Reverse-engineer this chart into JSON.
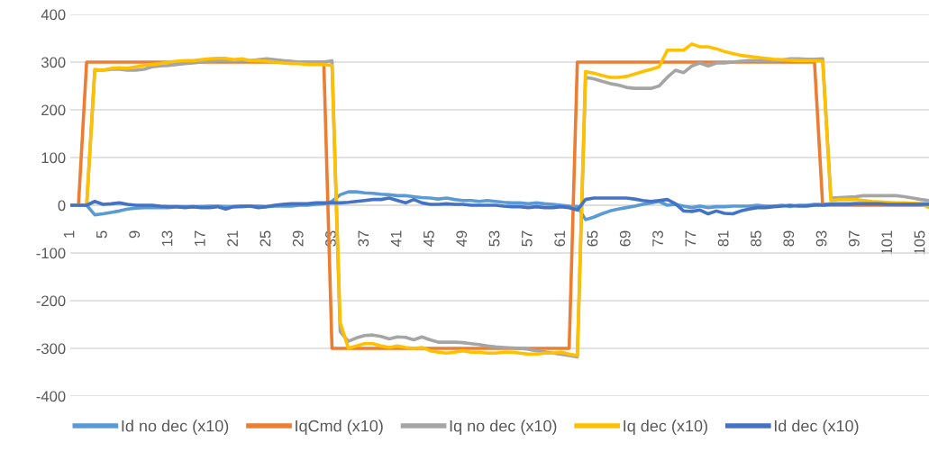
{
  "chart_data": {
    "type": "line",
    "categories": [
      "1",
      null,
      null,
      null,
      "5",
      null,
      null,
      null,
      "9",
      null,
      null,
      null,
      "13",
      null,
      null,
      null,
      "17",
      null,
      null,
      null,
      "21",
      null,
      null,
      null,
      "25",
      null,
      null,
      null,
      "29",
      null,
      null,
      null,
      "33",
      null,
      null,
      null,
      "37",
      null,
      null,
      null,
      "41",
      null,
      null,
      null,
      "45",
      null,
      null,
      null,
      "49",
      null,
      null,
      null,
      "53",
      null,
      null,
      null,
      "57",
      null,
      null,
      null,
      "61",
      null,
      null,
      null,
      "65",
      null,
      null,
      null,
      "69",
      null,
      null,
      null,
      "73",
      null,
      null,
      null,
      "77",
      null,
      null,
      null,
      "81",
      null,
      null,
      null,
      "85",
      null,
      null,
      null,
      "89",
      null,
      null,
      null,
      "93",
      null,
      null,
      null,
      "97",
      null,
      null,
      null,
      "101",
      null,
      null,
      null,
      "105",
      null
    ],
    "series": [
      {
        "name": "Id no dec (x10)",
        "color": "#5b9bd5",
        "values": [
          0,
          0,
          0,
          -20,
          -18,
          -15,
          -12,
          -8,
          -6,
          -5,
          -5,
          -5,
          -5,
          -3,
          -3,
          -3,
          -3,
          -2,
          -2,
          -3,
          -3,
          -3,
          -2,
          -2,
          -3,
          -2,
          -2,
          -2,
          0,
          0,
          2,
          3,
          8,
          22,
          28,
          28,
          26,
          25,
          23,
          22,
          20,
          20,
          18,
          16,
          15,
          13,
          15,
          12,
          10,
          10,
          8,
          10,
          8,
          6,
          5,
          5,
          3,
          5,
          3,
          2,
          0,
          -2,
          -3,
          -30,
          -25,
          -18,
          -12,
          -8,
          -5,
          -2,
          2,
          5,
          8,
          0,
          2,
          -2,
          -5,
          -2,
          -5,
          -3,
          -3,
          -2,
          -2,
          -2,
          0,
          -2,
          -2,
          0,
          -3,
          0,
          0,
          2,
          2,
          3,
          3,
          3,
          3,
          3,
          3,
          3,
          3,
          3,
          3,
          3,
          3,
          3
        ]
      },
      {
        "name": "IqCmd (x10)",
        "color": "#ed7d31",
        "values": [
          0,
          0,
          300,
          300,
          300,
          300,
          300,
          300,
          300,
          300,
          300,
          300,
          300,
          300,
          300,
          300,
          300,
          300,
          300,
          300,
          300,
          300,
          300,
          300,
          300,
          300,
          300,
          300,
          300,
          300,
          300,
          300,
          -300,
          -300,
          -300,
          -300,
          -300,
          -300,
          -300,
          -300,
          -300,
          -300,
          -300,
          -300,
          -300,
          -300,
          -300,
          -300,
          -300,
          -300,
          -300,
          -300,
          -300,
          -300,
          -300,
          -300,
          -300,
          -300,
          -300,
          -300,
          -300,
          -300,
          300,
          300,
          300,
          300,
          300,
          300,
          300,
          300,
          300,
          300,
          300,
          300,
          300,
          300,
          300,
          300,
          300,
          300,
          300,
          300,
          300,
          300,
          300,
          300,
          300,
          300,
          300,
          300,
          300,
          300,
          0,
          0,
          0,
          0,
          0,
          0,
          0,
          0,
          0,
          0,
          0,
          0,
          0,
          0
        ]
      },
      {
        "name": "Iq no dec (x10)",
        "color": "#a5a5a5",
        "values": [
          0,
          0,
          0,
          283,
          283,
          285,
          285,
          283,
          283,
          285,
          290,
          292,
          293,
          295,
          297,
          298,
          300,
          302,
          303,
          303,
          303,
          303,
          303,
          305,
          307,
          305,
          303,
          302,
          300,
          300,
          300,
          300,
          303,
          -265,
          -285,
          -278,
          -273,
          -272,
          -275,
          -280,
          -276,
          -277,
          -282,
          -276,
          -282,
          -287,
          -287,
          -287,
          -288,
          -290,
          -292,
          -295,
          -297,
          -298,
          -299,
          -300,
          -302,
          -305,
          -307,
          -310,
          -312,
          -315,
          -318,
          268,
          265,
          260,
          255,
          252,
          247,
          245,
          245,
          245,
          250,
          268,
          283,
          278,
          292,
          298,
          292,
          298,
          298,
          300,
          302,
          303,
          303,
          303,
          303,
          304,
          307,
          307,
          306,
          306,
          307,
          15,
          16,
          17,
          18,
          20,
          20,
          20,
          20,
          20,
          18,
          15,
          12,
          10
        ]
      },
      {
        "name": "Iq dec (x10)",
        "color": "#ffc000",
        "values": [
          0,
          0,
          0,
          285,
          283,
          287,
          288,
          287,
          290,
          293,
          295,
          297,
          300,
          302,
          303,
          303,
          305,
          307,
          308,
          308,
          305,
          307,
          303,
          303,
          302,
          300,
          298,
          297,
          297,
          295,
          295,
          295,
          293,
          -245,
          -300,
          -295,
          -290,
          -290,
          -295,
          -298,
          -295,
          -298,
          -300,
          -298,
          -305,
          -308,
          -310,
          -308,
          -305,
          -308,
          -308,
          -310,
          -310,
          -308,
          -308,
          -310,
          -312,
          -312,
          -310,
          -310,
          -308,
          -312,
          -315,
          280,
          277,
          272,
          268,
          268,
          270,
          275,
          280,
          285,
          290,
          325,
          325,
          325,
          338,
          332,
          332,
          328,
          322,
          318,
          314,
          312,
          310,
          308,
          306,
          305,
          304,
          303,
          303,
          303,
          302,
          10,
          12,
          12,
          12,
          10,
          8,
          7,
          6,
          5,
          5,
          4,
          3,
          -5
        ]
      },
      {
        "name": "Id dec (x10)",
        "color": "#4472c4",
        "values": [
          0,
          0,
          0,
          8,
          2,
          3,
          5,
          2,
          0,
          0,
          0,
          -2,
          -3,
          -3,
          -5,
          -3,
          -5,
          -5,
          -3,
          -8,
          -3,
          -2,
          -2,
          -5,
          -3,
          0,
          2,
          3,
          3,
          3,
          5,
          5,
          5,
          5,
          6,
          8,
          10,
          12,
          12,
          15,
          10,
          5,
          12,
          5,
          2,
          2,
          3,
          2,
          2,
          0,
          0,
          0,
          0,
          -2,
          -3,
          -3,
          -5,
          -3,
          -5,
          -5,
          -3,
          -5,
          -10,
          12,
          15,
          15,
          15,
          15,
          15,
          13,
          10,
          8,
          10,
          12,
          3,
          -12,
          -13,
          -10,
          -18,
          -12,
          -17,
          -18,
          -12,
          -8,
          -5,
          -5,
          -3,
          -2,
          0,
          -2,
          -2,
          0,
          0,
          2,
          2,
          2,
          3,
          3,
          3,
          3,
          2,
          2,
          2,
          2,
          2,
          2
        ]
      }
    ],
    "ylim": [
      -400,
      400
    ],
    "yticks": [
      -400,
      -300,
      -200,
      -100,
      0,
      100,
      200,
      300,
      400
    ],
    "grid": "y",
    "legend": "bottom",
    "marker": "none",
    "line_style": "solid"
  }
}
